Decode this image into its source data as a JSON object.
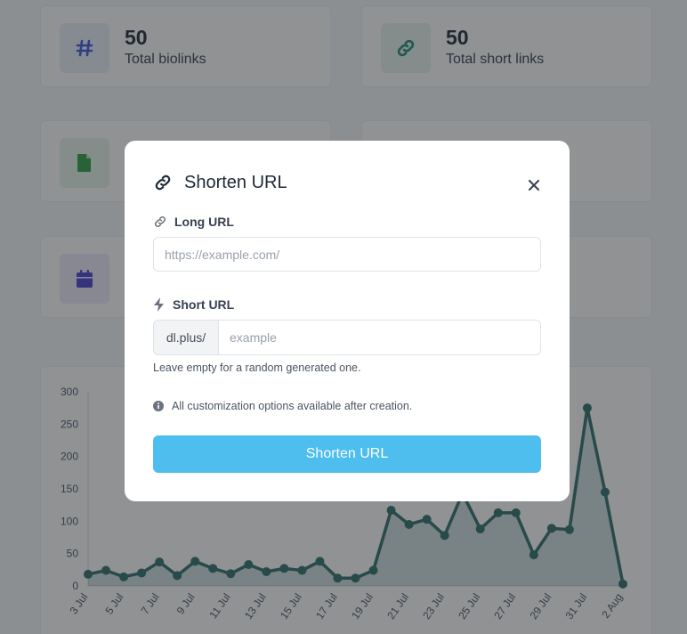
{
  "stats": [
    {
      "value": "50",
      "label": "Total biolinks",
      "icon": "hash-icon",
      "icon_color": "#3b5bdb",
      "icon_bg": "#eaf0fb"
    },
    {
      "value": "50",
      "label": "Total short links",
      "icon": "link-icon",
      "icon_color": "#1f8a70",
      "icon_bg": "#e6f3ee"
    },
    {
      "icon": "file-icon",
      "icon_color": "#2f9e44",
      "icon_bg": "#e7f5ea"
    },
    {
      "icon": "calendar-icon",
      "icon_color": "#4c3fd1",
      "icon_bg": "#ecebfb"
    }
  ],
  "chart_data": {
    "type": "area",
    "x": [
      "3 Jul",
      "4 Jul",
      "5 Jul",
      "6 Jul",
      "7 Jul",
      "8 Jul",
      "9 Jul",
      "10 Jul",
      "11 Jul",
      "12 Jul",
      "13 Jul",
      "14 Jul",
      "15 Jul",
      "16 Jul",
      "17 Jul",
      "18 Jul",
      "19 Jul",
      "20 Jul",
      "21 Jul",
      "22 Jul",
      "23 Jul",
      "24 Jul",
      "25 Jul",
      "26 Jul",
      "27 Jul",
      "28 Jul",
      "29 Jul",
      "30 Jul",
      "31 Jul",
      "1 Aug",
      "2 Aug"
    ],
    "xtick_labels": [
      "3 Jul",
      "5 Jul",
      "7 Jul",
      "9 Jul",
      "11 Jul",
      "13 Jul",
      "15 Jul",
      "17 Jul",
      "19 Jul",
      "21 Jul",
      "23 Jul",
      "25 Jul",
      "27 Jul",
      "29 Jul",
      "31 Jul",
      "2 Aug"
    ],
    "series": [
      {
        "values": [
          18,
          24,
          14,
          20,
          37,
          16,
          38,
          27,
          19,
          33,
          22,
          27,
          24,
          38,
          12,
          12,
          24,
          117,
          95,
          103,
          78,
          143,
          88,
          113,
          113,
          48,
          89,
          87,
          275,
          145,
          3
        ]
      }
    ],
    "ylim": [
      0,
      300
    ],
    "yticks": [
      0,
      50,
      100,
      150,
      200,
      250,
      300
    ],
    "color": "#2f6f6a"
  },
  "modal": {
    "title": "Shorten URL",
    "long_url_label": "Long URL",
    "long_url_placeholder": "https://example.com/",
    "short_url_label": "Short URL",
    "short_url_prefix": "dl.plus/",
    "short_url_placeholder": "example",
    "help_text": "Leave empty for a random generated one.",
    "info_text": "All customization options available after creation.",
    "submit_label": "Shorten URL"
  },
  "colors": {
    "accent": "#4dbeee",
    "overlay": "rgba(33,37,41,0.5)"
  }
}
